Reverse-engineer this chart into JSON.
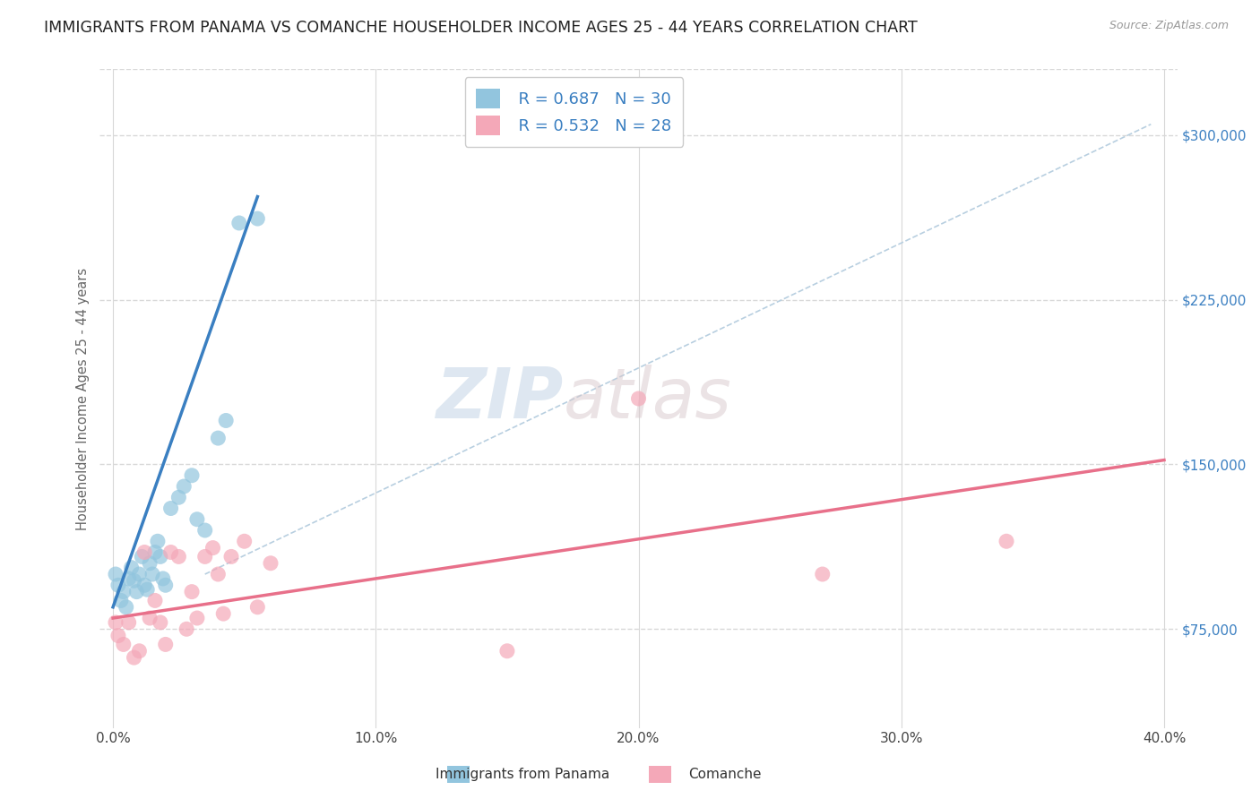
{
  "title": "IMMIGRANTS FROM PANAMA VS COMANCHE HOUSEHOLDER INCOME AGES 25 - 44 YEARS CORRELATION CHART",
  "source": "Source: ZipAtlas.com",
  "ylabel": "Householder Income Ages 25 - 44 years",
  "x_ticks": [
    "0.0%",
    "10.0%",
    "20.0%",
    "30.0%",
    "40.0%"
  ],
  "x_tick_vals": [
    0.0,
    0.1,
    0.2,
    0.3,
    0.4
  ],
  "y_tick_vals": [
    75000,
    150000,
    225000,
    300000
  ],
  "y_tick_labels": [
    "$75,000",
    "$150,000",
    "$225,000",
    "$300,000"
  ],
  "xlim": [
    -0.005,
    0.405
  ],
  "ylim": [
    30000,
    330000
  ],
  "blue_color": "#92c5de",
  "pink_color": "#f4a8b8",
  "blue_line_color": "#3a7fc1",
  "pink_line_color": "#e8708a",
  "dashed_line_color": "#b8cfe0",
  "legend_R_blue": "R = 0.687",
  "legend_N_blue": "N = 30",
  "legend_R_pink": "R = 0.532",
  "legend_N_pink": "N = 28",
  "legend_label_blue": "Immigrants from Panama",
  "legend_label_pink": "Comanche",
  "watermark_zip": "ZIP",
  "watermark_atlas": "atlas",
  "blue_scatter_x": [
    0.001,
    0.002,
    0.003,
    0.004,
    0.005,
    0.006,
    0.007,
    0.008,
    0.009,
    0.01,
    0.011,
    0.012,
    0.013,
    0.014,
    0.015,
    0.016,
    0.017,
    0.018,
    0.019,
    0.02,
    0.022,
    0.025,
    0.027,
    0.03,
    0.032,
    0.035,
    0.04,
    0.043,
    0.048,
    0.055
  ],
  "blue_scatter_y": [
    100000,
    95000,
    88000,
    92000,
    85000,
    98000,
    103000,
    97000,
    92000,
    100000,
    108000,
    95000,
    93000,
    105000,
    100000,
    110000,
    115000,
    108000,
    98000,
    95000,
    130000,
    135000,
    140000,
    145000,
    125000,
    120000,
    162000,
    170000,
    260000,
    262000
  ],
  "pink_scatter_x": [
    0.001,
    0.002,
    0.004,
    0.006,
    0.008,
    0.01,
    0.012,
    0.014,
    0.016,
    0.018,
    0.02,
    0.022,
    0.025,
    0.028,
    0.03,
    0.032,
    0.035,
    0.038,
    0.04,
    0.042,
    0.045,
    0.05,
    0.055,
    0.06,
    0.15,
    0.2,
    0.27,
    0.34
  ],
  "pink_scatter_y": [
    78000,
    72000,
    68000,
    78000,
    62000,
    65000,
    110000,
    80000,
    88000,
    78000,
    68000,
    110000,
    108000,
    75000,
    92000,
    80000,
    108000,
    112000,
    100000,
    82000,
    108000,
    115000,
    85000,
    105000,
    65000,
    180000,
    100000,
    115000
  ],
  "blue_line_x": [
    0.0,
    0.055
  ],
  "blue_line_y": [
    85000,
    272000
  ],
  "pink_line_x": [
    0.0,
    0.4
  ],
  "pink_line_y": [
    80000,
    152000
  ],
  "diag_line_x": [
    0.035,
    0.395
  ],
  "diag_line_y": [
    100000,
    305000
  ],
  "background_color": "#ffffff",
  "grid_color": "#d8d8d8",
  "title_fontsize": 12.5,
  "axis_label_fontsize": 10.5,
  "tick_fontsize": 11,
  "legend_fontsize": 13,
  "ytick_color": "#3a7fc1"
}
